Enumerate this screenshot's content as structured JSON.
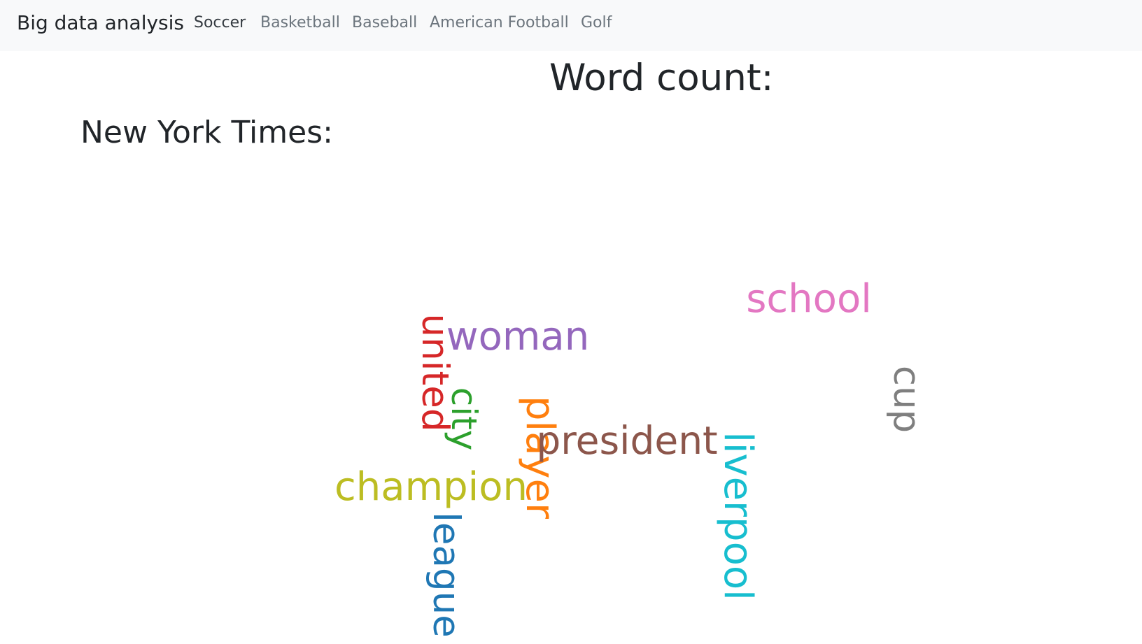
{
  "navbar": {
    "brand": "Big data analysis",
    "links": [
      {
        "label": "Soccer",
        "active": true
      },
      {
        "label": "Basketball",
        "active": false
      },
      {
        "label": "Baseball",
        "active": false
      },
      {
        "label": "American Football",
        "active": false
      },
      {
        "label": "Golf",
        "active": false
      }
    ]
  },
  "main": {
    "heading": "Word count:",
    "source_heading": "New York Times:"
  },
  "word_cloud": {
    "words": [
      {
        "text": "school",
        "color": "#e377c2",
        "orientation": "horizontal"
      },
      {
        "text": "woman",
        "color": "#9467bd",
        "orientation": "horizontal"
      },
      {
        "text": "united",
        "color": "#d62728",
        "orientation": "vertical"
      },
      {
        "text": "city",
        "color": "#2ca02c",
        "orientation": "vertical"
      },
      {
        "text": "player",
        "color": "#ff7f0e",
        "orientation": "vertical"
      },
      {
        "text": "president",
        "color": "#8c564b",
        "orientation": "horizontal"
      },
      {
        "text": "cup",
        "color": "#7f7f7f",
        "orientation": "vertical"
      },
      {
        "text": "liverpool",
        "color": "#17becf",
        "orientation": "vertical"
      },
      {
        "text": "champion",
        "color": "#bcbd22",
        "orientation": "horizontal"
      },
      {
        "text": "league",
        "color": "#1f77b4",
        "orientation": "vertical"
      }
    ]
  }
}
